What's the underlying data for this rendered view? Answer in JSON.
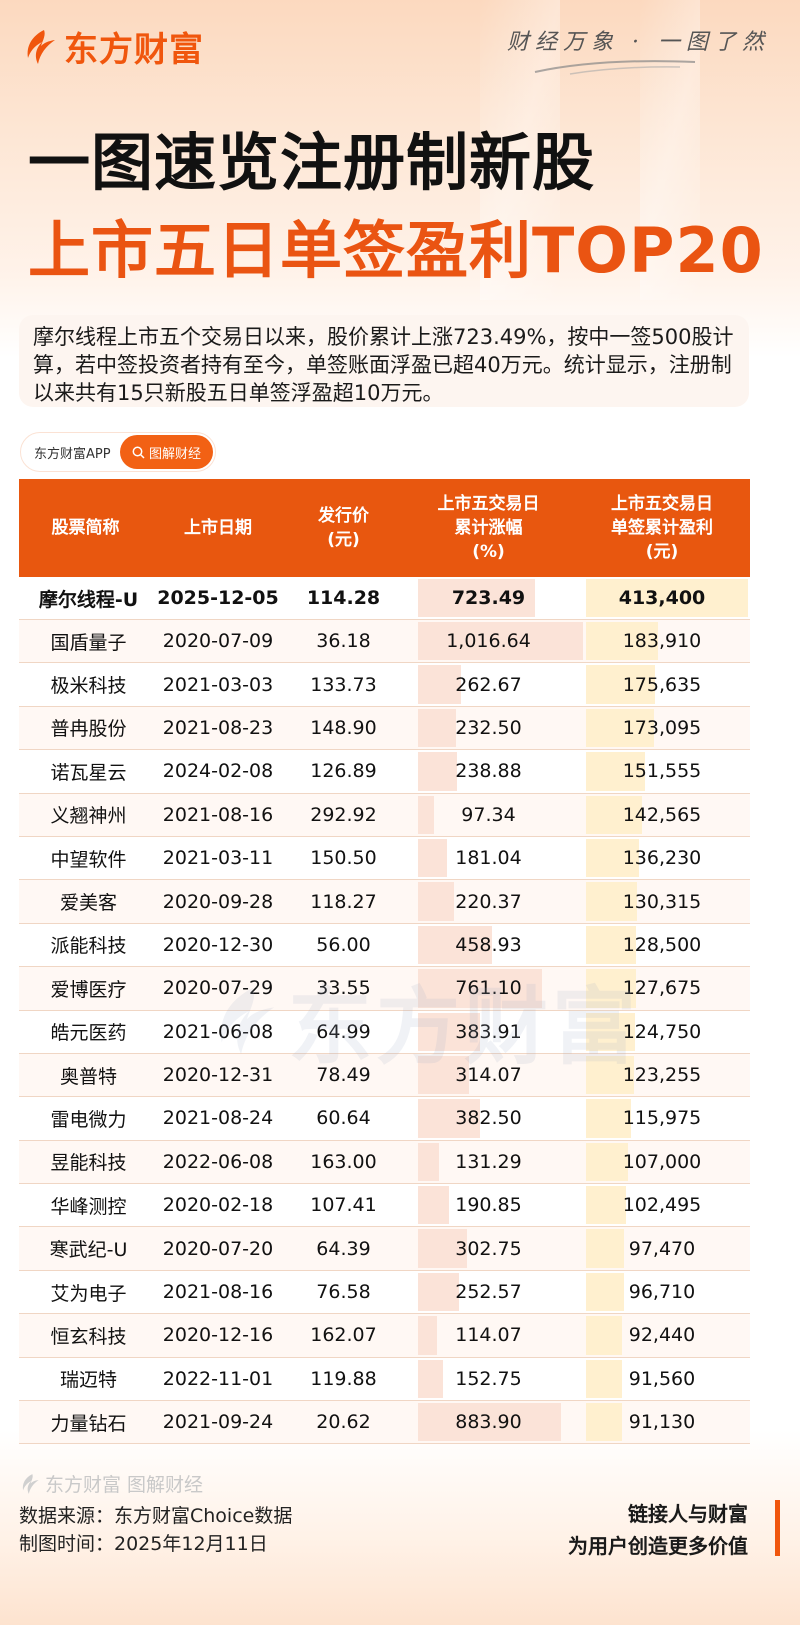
{
  "header": {
    "brand": "东方财富",
    "slogan": "财经万象 · 一图了然"
  },
  "title": {
    "line1": "一图速览注册制新股",
    "line2": "上市五日单签盈利TOP20"
  },
  "summary": "摩尔线程上市五个交易日以来，股价累计上涨723.49%，按中一签500股计算，若中签投资者持有至今，单签账面浮盈已超40万元。统计显示，注册制以来共有15只新股五日单签浮盈超10万元。",
  "tag": {
    "source": "东方财富APP",
    "button": "图解财经",
    "button_icon": "search-icon"
  },
  "colors": {
    "brand_orange": "#e8570f",
    "title_orange": "#ea5412",
    "bar_pink": "#fbe3d8",
    "bar_yellow": "#fff0cf",
    "row_alt": "#fff8f4"
  },
  "table": {
    "headers": [
      "股票简称",
      "上市日期",
      "发行价\n(元)",
      "上市五交易日\n累计涨幅\n(%)",
      "上市五交易日\n单签累计盈利\n(元)"
    ],
    "rows": [
      {
        "name": "摩尔线程-U",
        "date": "2025-12-05",
        "price": "114.28",
        "gain": "723.49",
        "profit": "413,400",
        "highlight": true
      },
      {
        "name": "国盾量子",
        "date": "2020-07-09",
        "price": "36.18",
        "gain": "1,016.64",
        "profit": "183,910"
      },
      {
        "name": "极米科技",
        "date": "2021-03-03",
        "price": "133.73",
        "gain": "262.67",
        "profit": "175,635"
      },
      {
        "name": "普冉股份",
        "date": "2021-08-23",
        "price": "148.90",
        "gain": "232.50",
        "profit": "173,095"
      },
      {
        "name": "诺瓦星云",
        "date": "2024-02-08",
        "price": "126.89",
        "gain": "238.88",
        "profit": "151,555"
      },
      {
        "name": "义翘神州",
        "date": "2021-08-16",
        "price": "292.92",
        "gain": "97.34",
        "profit": "142,565"
      },
      {
        "name": "中望软件",
        "date": "2021-03-11",
        "price": "150.50",
        "gain": "181.04",
        "profit": "136,230"
      },
      {
        "name": "爱美客",
        "date": "2020-09-28",
        "price": "118.27",
        "gain": "220.37",
        "profit": "130,315"
      },
      {
        "name": "派能科技",
        "date": "2020-12-30",
        "price": "56.00",
        "gain": "458.93",
        "profit": "128,500"
      },
      {
        "name": "爱博医疗",
        "date": "2020-07-29",
        "price": "33.55",
        "gain": "761.10",
        "profit": "127,675"
      },
      {
        "name": "皓元医药",
        "date": "2021-06-08",
        "price": "64.99",
        "gain": "383.91",
        "profit": "124,750"
      },
      {
        "name": "奥普特",
        "date": "2020-12-31",
        "price": "78.49",
        "gain": "314.07",
        "profit": "123,255"
      },
      {
        "name": "雷电微力",
        "date": "2021-08-24",
        "price": "60.64",
        "gain": "382.50",
        "profit": "115,975"
      },
      {
        "name": "昱能科技",
        "date": "2022-06-08",
        "price": "163.00",
        "gain": "131.29",
        "profit": "107,000"
      },
      {
        "name": "华峰测控",
        "date": "2020-02-18",
        "price": "107.41",
        "gain": "190.85",
        "profit": "102,495"
      },
      {
        "name": "寒武纪-U",
        "date": "2020-07-20",
        "price": "64.39",
        "gain": "302.75",
        "profit": "97,470"
      },
      {
        "name": "艾为电子",
        "date": "2021-08-16",
        "price": "76.58",
        "gain": "252.57",
        "profit": "96,710"
      },
      {
        "name": "恒玄科技",
        "date": "2020-12-16",
        "price": "162.07",
        "gain": "114.07",
        "profit": "92,440"
      },
      {
        "name": "瑞迈特",
        "date": "2022-11-01",
        "price": "119.88",
        "gain": "152.75",
        "profit": "91,560"
      },
      {
        "name": "力量钻石",
        "date": "2021-09-24",
        "price": "20.62",
        "gain": "883.90",
        "profit": "91,130"
      }
    ]
  },
  "watermark": "东方财富",
  "footer": {
    "logo_text": "东方财富 图解财经",
    "source": "数据来源：东方财富Choice数据",
    "date": "制图时间：2025年12月11日",
    "tagline1": "链接人与财富",
    "tagline2": "为用户创造更多价值"
  },
  "chart_data": {
    "type": "table",
    "title": "一图速览注册制新股 上市五日单签盈利TOP20",
    "columns": [
      "股票简称",
      "上市日期",
      "发行价(元)",
      "上市五交易日累计涨幅(%)",
      "上市五交易日单签累计盈利(元)"
    ],
    "categories": [
      "摩尔线程-U",
      "国盾量子",
      "极米科技",
      "普冉股份",
      "诺瓦星云",
      "义翘神州",
      "中望软件",
      "爱美客",
      "派能科技",
      "爱博医疗",
      "皓元医药",
      "奥普特",
      "雷电微力",
      "昱能科技",
      "华峰测控",
      "寒武纪-U",
      "艾为电子",
      "恒玄科技",
      "瑞迈特",
      "力量钻石"
    ],
    "series": [
      {
        "name": "上市日期",
        "values": [
          "2025-12-05",
          "2020-07-09",
          "2021-03-03",
          "2021-08-23",
          "2024-02-08",
          "2021-08-16",
          "2021-03-11",
          "2020-09-28",
          "2020-12-30",
          "2020-07-29",
          "2021-06-08",
          "2020-12-31",
          "2021-08-24",
          "2022-06-08",
          "2020-02-18",
          "2020-07-20",
          "2021-08-16",
          "2020-12-16",
          "2022-11-01",
          "2021-09-24"
        ]
      },
      {
        "name": "发行价(元)",
        "values": [
          114.28,
          36.18,
          133.73,
          148.9,
          126.89,
          292.92,
          150.5,
          118.27,
          56.0,
          33.55,
          64.99,
          78.49,
          60.64,
          163.0,
          107.41,
          64.39,
          76.58,
          162.07,
          119.88,
          20.62
        ]
      },
      {
        "name": "上市五交易日累计涨幅(%)",
        "values": [
          723.49,
          1016.64,
          262.67,
          232.5,
          238.88,
          97.34,
          181.04,
          220.37,
          458.93,
          761.1,
          383.91,
          314.07,
          382.5,
          131.29,
          190.85,
          302.75,
          252.57,
          114.07,
          152.75,
          883.9
        ]
      },
      {
        "name": "上市五交易日单签累计盈利(元)",
        "values": [
          413400,
          183910,
          175635,
          173095,
          151555,
          142565,
          136230,
          130315,
          128500,
          127675,
          124750,
          123255,
          115975,
          107000,
          102495,
          97470,
          96710,
          92440,
          91560,
          91130
        ]
      }
    ],
    "notes": "Data bars shown in 涨幅 column (pink) and 盈利 column (yellow)"
  }
}
